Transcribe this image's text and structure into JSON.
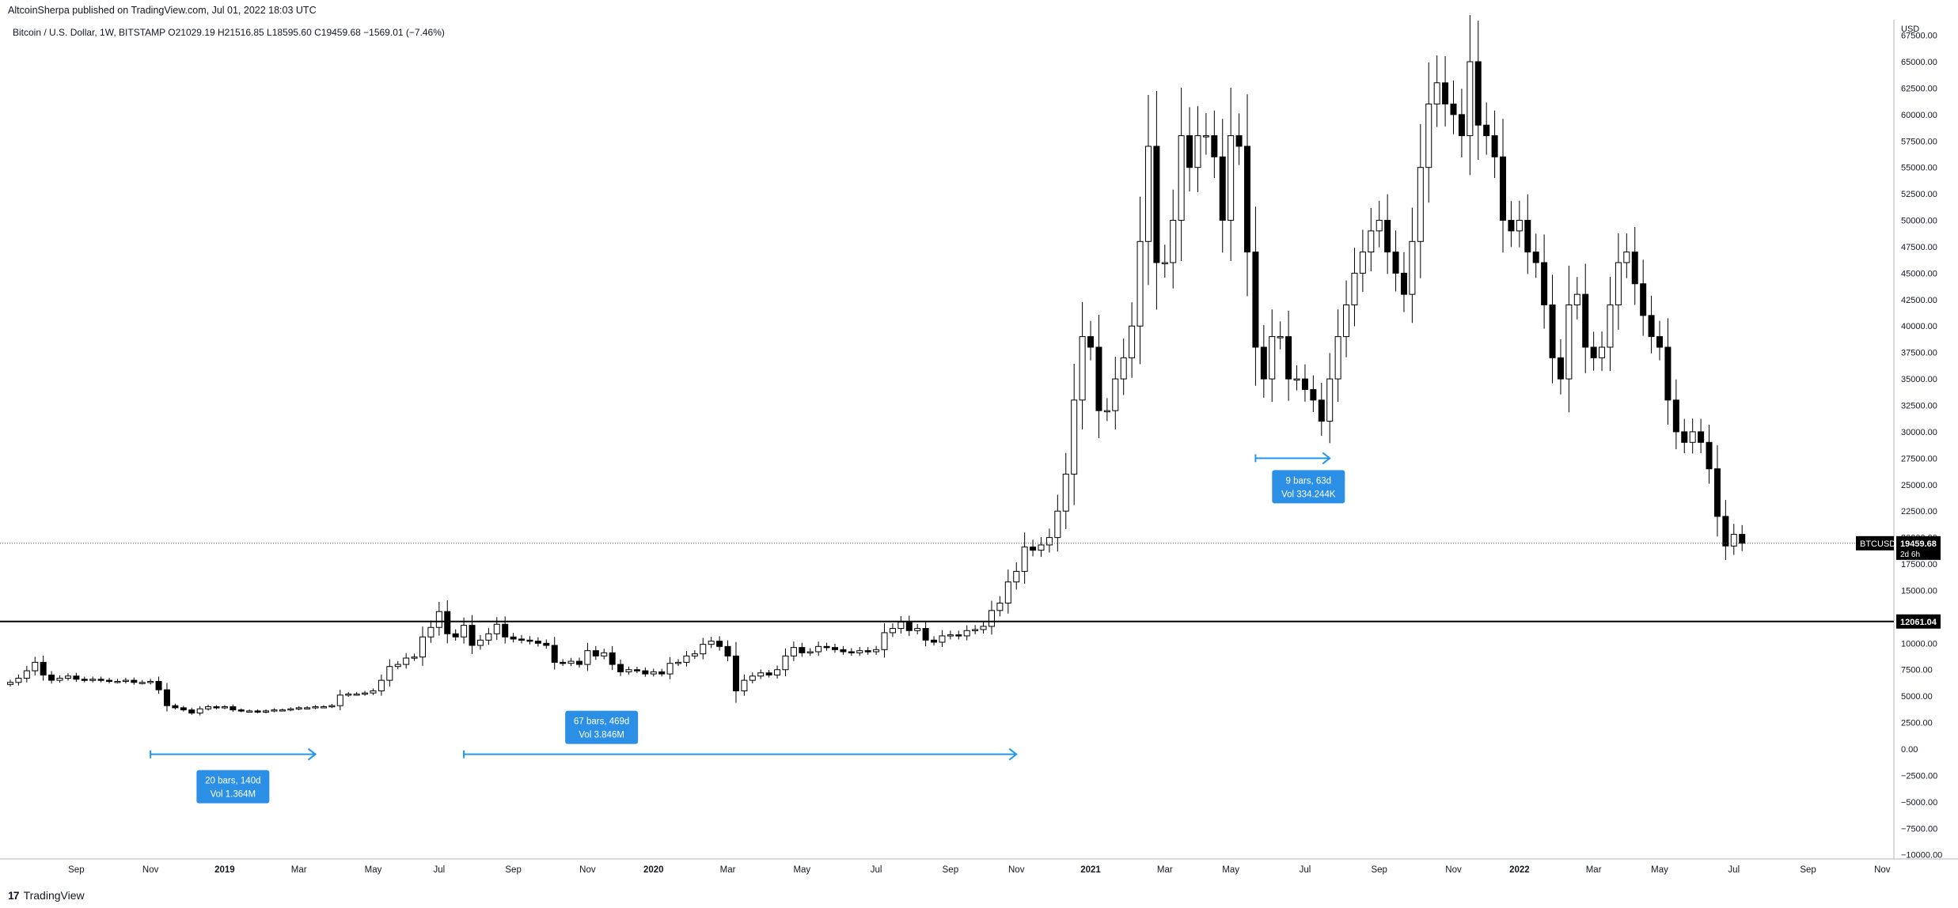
{
  "publish_line": "AltcoinSherpa published on TradingView.com, Jul 01, 2022 18:03 UTC",
  "symbol_line": "Bitcoin / U.S. Dollar, 1W, BITSTAMP  O21029.19  H21516.85  L18595.60  C19459.68  −1569.01 (−7.46%)",
  "footer_brand": "TradingView",
  "chart_data": {
    "type": "candlestick",
    "symbol": "BTCUSD",
    "interval": "1W",
    "currency_label": "USD",
    "yticks": [
      {
        "v": 67500,
        "label": "67500.00"
      },
      {
        "v": 65000,
        "label": "65000.00"
      },
      {
        "v": 62500,
        "label": "62500.00"
      },
      {
        "v": 60000,
        "label": "60000.00"
      },
      {
        "v": 57500,
        "label": "57500.00"
      },
      {
        "v": 55000,
        "label": "55000.00"
      },
      {
        "v": 52500,
        "label": "52500.00"
      },
      {
        "v": 50000,
        "label": "50000.00"
      },
      {
        "v": 47500,
        "label": "47500.00"
      },
      {
        "v": 45000,
        "label": "45000.00"
      },
      {
        "v": 42500,
        "label": "42500.00"
      },
      {
        "v": 40000,
        "label": "40000.00"
      },
      {
        "v": 37500,
        "label": "37500.00"
      },
      {
        "v": 35000,
        "label": "35000.00"
      },
      {
        "v": 32500,
        "label": "32500.00"
      },
      {
        "v": 30000,
        "label": "30000.00"
      },
      {
        "v": 27500,
        "label": "27500.00"
      },
      {
        "v": 25000,
        "label": "25000.00"
      },
      {
        "v": 22500,
        "label": "22500.00"
      },
      {
        "v": 20000,
        "label": "20000.00"
      },
      {
        "v": 17500,
        "label": "17500.00"
      },
      {
        "v": 15000,
        "label": "15000.00"
      },
      {
        "v": 10000,
        "label": "10000.00"
      },
      {
        "v": 7500,
        "label": "7500.00"
      },
      {
        "v": 5000,
        "label": "5000.00"
      },
      {
        "v": 2500,
        "label": "2500.00"
      },
      {
        "v": 0,
        "label": "0.00"
      },
      {
        "v": -2500,
        "label": "−2500.00"
      },
      {
        "v": -5000,
        "label": "−5000.00"
      },
      {
        "v": -7500,
        "label": "−7500.00"
      },
      {
        "v": -10000,
        "label": "−10000.00"
      }
    ],
    "ylim": [
      -10000,
      69000
    ],
    "xticks": [
      {
        "label": "Sep",
        "week": 8,
        "bold": false
      },
      {
        "label": "Nov",
        "week": 17,
        "bold": false
      },
      {
        "label": "2019",
        "week": 26,
        "bold": true
      },
      {
        "label": "Mar",
        "week": 35,
        "bold": false
      },
      {
        "label": "May",
        "week": 44,
        "bold": false
      },
      {
        "label": "Jul",
        "week": 52,
        "bold": false
      },
      {
        "label": "Sep",
        "week": 61,
        "bold": false
      },
      {
        "label": "Nov",
        "week": 70,
        "bold": false
      },
      {
        "label": "2020",
        "week": 78,
        "bold": true
      },
      {
        "label": "Mar",
        "week": 87,
        "bold": false
      },
      {
        "label": "May",
        "week": 96,
        "bold": false
      },
      {
        "label": "Jul",
        "week": 105,
        "bold": false
      },
      {
        "label": "Sep",
        "week": 114,
        "bold": false
      },
      {
        "label": "Nov",
        "week": 122,
        "bold": false
      },
      {
        "label": "2021",
        "week": 131,
        "bold": true
      },
      {
        "label": "Mar",
        "week": 140,
        "bold": false
      },
      {
        "label": "May",
        "week": 148,
        "bold": false
      },
      {
        "label": "Jul",
        "week": 157,
        "bold": false
      },
      {
        "label": "Sep",
        "week": 166,
        "bold": false
      },
      {
        "label": "Nov",
        "week": 175,
        "bold": false
      },
      {
        "label": "2022",
        "week": 183,
        "bold": true
      },
      {
        "label": "Mar",
        "week": 192,
        "bold": false
      },
      {
        "label": "May",
        "week": 200,
        "bold": false
      },
      {
        "label": "Jul",
        "week": 209,
        "bold": false
      },
      {
        "label": "Sep",
        "week": 218,
        "bold": false
      },
      {
        "label": "Nov",
        "week": 227,
        "bold": false
      }
    ],
    "weekly_close": [
      6300,
      6700,
      7400,
      8200,
      7000,
      6500,
      6700,
      6900,
      6600,
      6500,
      6600,
      6500,
      6400,
      6400,
      6500,
      6300,
      6300,
      6400,
      5600,
      4100,
      3900,
      3700,
      3400,
      3800,
      4000,
      3900,
      4000,
      3700,
      3600,
      3600,
      3500,
      3600,
      3700,
      3700,
      3800,
      3900,
      3900,
      4000,
      4000,
      4100,
      5100,
      5200,
      5200,
      5300,
      5500,
      6500,
      7800,
      8000,
      8600,
      8700,
      10600,
      11500,
      13000,
      10900,
      10600,
      11700,
      9800,
      10300,
      10900,
      11800,
      10600,
      10400,
      10300,
      10200,
      10000,
      9800,
      8200,
      8100,
      8300,
      8000,
      9300,
      8800,
      9100,
      8000,
      7300,
      7500,
      7400,
      7100,
      7300,
      7100,
      8100,
      8200,
      8800,
      9000,
      9900,
      10200,
      9700,
      8800,
      5500,
      6500,
      6900,
      7200,
      7000,
      7500,
      8800,
      9600,
      9100,
      9200,
      9700,
      9600,
      9400,
      9200,
      9100,
      9300,
      9200,
      9400,
      11000,
      11400,
      12000,
      11200,
      11400,
      10300,
      10100,
      10700,
      10800,
      10700,
      11200,
      11300,
      11600,
      13100,
      13800,
      15800,
      16800,
      19100,
      18800,
      19300,
      20000,
      22500,
      26000,
      33000,
      39000,
      38000,
      32000,
      32000,
      35000,
      37000,
      40000,
      48000,
      57000,
      46000,
      46000,
      50000,
      58000,
      55000,
      58000,
      58000,
      56000,
      50000,
      58000,
      57000,
      47000,
      38000,
      35000,
      39000,
      39000,
      35000,
      35000,
      34000,
      33000,
      31000,
      35000,
      39000,
      42000,
      45000,
      47000,
      49000,
      50000,
      47000,
      45000,
      43000,
      48000,
      55000,
      61000,
      63000,
      61000,
      60000,
      58000,
      65000,
      59000,
      58000,
      56000,
      50000,
      49000,
      50000,
      47000,
      46000,
      42000,
      37000,
      35000,
      42000,
      43000,
      38000,
      37000,
      38000,
      42000,
      46000,
      47000,
      44000,
      41000,
      39000,
      38000,
      33000,
      30000,
      29000,
      30000,
      29000,
      26500,
      22000,
      19200,
      20300,
      19459
    ],
    "support_level": {
      "value": 12061.04,
      "label": "12061.04"
    },
    "current_price": {
      "value": 19459.68,
      "label": "19459.68",
      "tag": "BTCUSD",
      "countdown": "2d 6h"
    },
    "measures": [
      {
        "from_week": 17,
        "to_week": 37,
        "y": -500,
        "label_bars": "20 bars, 140d",
        "label_vol": "Vol 1.364M"
      },
      {
        "from_week": 55,
        "to_week": 122,
        "y": -500,
        "label_bars": "67 bars, 469d",
        "label_vol": "Vol 3.846M"
      },
      {
        "from_week": 151,
        "to_week": 160,
        "y": 27500,
        "label_bars": "9 bars, 63d",
        "label_vol": "Vol 334.244K"
      }
    ],
    "colors": {
      "up_fill": "#ffffff",
      "down_fill": "#000000",
      "wick": "#000000",
      "measure": "#2196f3",
      "measure_label_bg": "#2c8fe6",
      "tag_bg": "#000000"
    }
  }
}
